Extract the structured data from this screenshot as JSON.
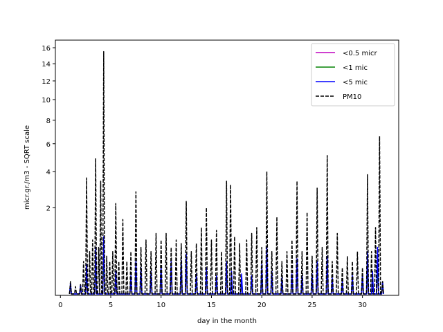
{
  "chart_data": {
    "type": "line",
    "title": "",
    "xlabel": "day in the month",
    "ylabel": "micr.gr./m3 - SQRT scale",
    "y_scale": "sqrt",
    "xlim": [
      -0.5,
      33.6
    ],
    "ylim": [
      0,
      17
    ],
    "x_ticks": [
      0,
      5,
      10,
      15,
      20,
      25,
      30
    ],
    "y_ticks": [
      2,
      4,
      6,
      8,
      10,
      12,
      14,
      16
    ],
    "legend_position": "top-right",
    "grid": false,
    "series": [
      {
        "name": "<0.5 micr",
        "color": "#bf00bf",
        "style": "solid",
        "x": [
          1.0,
          2.0,
          2.6,
          3.5,
          4.3,
          5.5,
          7.0,
          7.5,
          8.0,
          9.0,
          10.0,
          11.0,
          12.0,
          12.5,
          13.5,
          14.5,
          15.5,
          16.5,
          17.0,
          18.0,
          19.0,
          20.0,
          20.5,
          21.0,
          22.0,
          23.0,
          23.5,
          24.0,
          25.0,
          25.5,
          26.5,
          27.0,
          28.0,
          29.0,
          30.0,
          30.5,
          31.0,
          31.5,
          32.0
        ],
        "y": [
          0.02,
          0.01,
          0.1,
          0.25,
          0.35,
          0.06,
          0.05,
          0.12,
          0.1,
          0.08,
          0.12,
          0.2,
          0.22,
          0.28,
          0.05,
          0.08,
          0.04,
          0.1,
          0.06,
          0.05,
          0.04,
          0.1,
          0.22,
          0.06,
          0.03,
          0.05,
          0.15,
          0.04,
          0.05,
          0.12,
          0.2,
          0.03,
          0.02,
          0.04,
          0.05,
          0.18,
          0.06,
          0.2,
          0.02
        ]
      },
      {
        "name": "<1 mic",
        "color": "#008000",
        "style": "solid",
        "x": [
          1.0,
          2.0,
          2.6,
          3.5,
          4.3,
          5.5,
          7.0,
          7.5,
          8.0,
          9.0,
          10.0,
          11.0,
          12.0,
          12.5,
          13.5,
          14.5,
          15.5,
          16.5,
          17.0,
          18.0,
          19.0,
          20.0,
          20.5,
          21.0,
          22.0,
          23.0,
          23.5,
          24.0,
          25.0,
          25.5,
          26.5,
          27.0,
          28.0,
          29.0,
          30.0,
          30.5,
          31.0,
          31.5,
          32.0
        ],
        "y": [
          0.03,
          0.02,
          0.15,
          0.35,
          0.5,
          0.1,
          0.08,
          0.2,
          0.15,
          0.12,
          0.18,
          0.25,
          0.28,
          0.35,
          0.08,
          0.12,
          0.06,
          0.15,
          0.1,
          0.08,
          0.06,
          0.15,
          0.3,
          0.1,
          0.05,
          0.08,
          0.22,
          0.06,
          0.08,
          0.18,
          0.28,
          0.05,
          0.03,
          0.06,
          0.08,
          0.25,
          0.1,
          0.28,
          0.03
        ]
      },
      {
        "name": "<5 mic",
        "color": "#0000ff",
        "style": "solid",
        "x": [
          1.0,
          2.0,
          2.6,
          3.5,
          4.3,
          5.5,
          7.0,
          7.5,
          8.0,
          9.0,
          10.0,
          11.0,
          12.0,
          12.5,
          13.5,
          14.5,
          15.5,
          16.5,
          17.0,
          18.0,
          19.0,
          20.0,
          20.5,
          21.0,
          22.0,
          23.0,
          23.5,
          24.0,
          25.0,
          25.5,
          26.5,
          27.0,
          28.0,
          29.0,
          30.0,
          30.5,
          31.0,
          31.5,
          32.0
        ],
        "y": [
          0.04,
          0.03,
          0.25,
          0.6,
          0.9,
          0.15,
          0.1,
          0.3,
          0.2,
          0.15,
          0.22,
          0.3,
          0.32,
          0.45,
          0.12,
          0.2,
          0.1,
          0.3,
          0.15,
          0.12,
          0.1,
          0.25,
          0.6,
          0.15,
          0.08,
          0.12,
          0.35,
          0.1,
          0.12,
          0.3,
          0.4,
          0.08,
          0.05,
          0.1,
          0.12,
          0.5,
          0.15,
          0.6,
          0.05
        ]
      },
      {
        "name": "PM10",
        "color": "#000000",
        "style": "dashed",
        "x": [
          1.0,
          1.5,
          2.0,
          2.3,
          2.6,
          2.9,
          3.2,
          3.5,
          3.8,
          4.0,
          4.3,
          4.6,
          4.9,
          5.2,
          5.5,
          5.8,
          6.2,
          6.6,
          7.0,
          7.5,
          8.0,
          8.5,
          9.0,
          9.5,
          10.0,
          10.5,
          11.0,
          11.5,
          12.0,
          12.5,
          13.0,
          13.5,
          14.0,
          14.5,
          15.0,
          15.5,
          16.0,
          16.5,
          16.9,
          17.3,
          17.8,
          18.5,
          19.0,
          19.5,
          20.0,
          20.5,
          21.0,
          21.5,
          22.0,
          22.5,
          23.0,
          23.5,
          24.0,
          24.5,
          25.0,
          25.5,
          26.0,
          26.5,
          27.0,
          27.5,
          28.0,
          28.5,
          29.0,
          29.5,
          30.0,
          30.5,
          30.9,
          31.3,
          31.7,
          32.0
        ],
        "y": [
          0.05,
          0.02,
          0.03,
          0.3,
          3.6,
          0.5,
          0.8,
          4.9,
          0.6,
          3.4,
          15.5,
          0.4,
          0.3,
          0.5,
          2.2,
          0.3,
          1.5,
          0.3,
          0.5,
          2.8,
          0.6,
          0.8,
          0.5,
          1.0,
          0.8,
          1.0,
          0.6,
          0.8,
          0.7,
          2.3,
          0.5,
          0.7,
          1.2,
          2.0,
          0.8,
          1.1,
          0.5,
          3.4,
          3.2,
          0.9,
          0.7,
          0.8,
          1.0,
          1.2,
          0.6,
          4.0,
          0.5,
          1.6,
          0.3,
          0.5,
          0.8,
          3.4,
          0.5,
          1.8,
          0.4,
          3.0,
          0.6,
          5.1,
          0.3,
          1.0,
          0.2,
          0.4,
          0.3,
          0.5,
          0.2,
          3.8,
          0.5,
          1.2,
          6.6,
          0.05
        ]
      }
    ]
  }
}
